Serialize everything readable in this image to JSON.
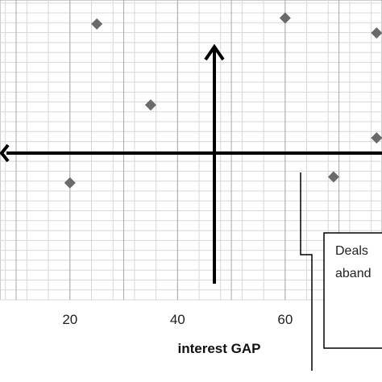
{
  "chart_data": {
    "type": "scatter",
    "title": "",
    "xlabel": "interest GAP",
    "ylabel": "",
    "xlim": [
      7,
      78
    ],
    "ylim": [
      0,
      100
    ],
    "x_ticks": [
      20,
      40,
      60
    ],
    "grid": true,
    "series": [
      {
        "marker": "diamond",
        "color": "#6a6a6a",
        "points": [
          {
            "x": 20,
            "y": 39
          },
          {
            "x": 25,
            "y": 92
          },
          {
            "x": 35,
            "y": 65
          },
          {
            "x": 60,
            "y": 94
          },
          {
            "x": 69,
            "y": 41
          },
          {
            "x": 77,
            "y": 89
          },
          {
            "x": 77,
            "y": 54
          }
        ]
      }
    ],
    "annotations": [
      {
        "text_lines": [
          "Deals",
          "aband"
        ]
      }
    ]
  }
}
